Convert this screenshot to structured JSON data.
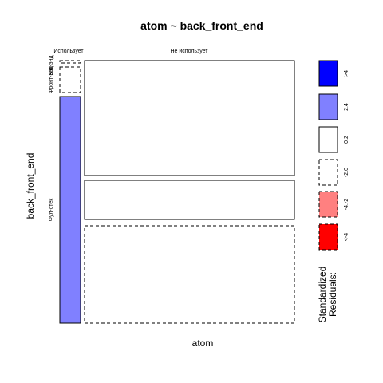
{
  "chart_data": {
    "type": "mosaic",
    "title": "atom ~ back_front_end",
    "xlabel": "atom",
    "ylabel": "back_front_end",
    "x_categories": [
      "Использует",
      "Не использует"
    ],
    "y_categories": [
      "Бэк-энд",
      "Фронт-энд",
      "Фул-стек"
    ],
    "cells": [
      {
        "x": "Использует",
        "y": "Бэк-энд",
        "fill": "white",
        "border": "dashed"
      },
      {
        "x": "Использует",
        "y": "Фронт-энд",
        "fill": "white",
        "border": "dashed"
      },
      {
        "x": "Использует",
        "y": "Фул-стек",
        "fill": "#8080ff",
        "border": "solid"
      },
      {
        "x": "Не использует",
        "y": "Бэк-энд",
        "fill": "white",
        "border": "solid"
      },
      {
        "x": "Не использует",
        "y": "Фронт-энд",
        "fill": "white",
        "border": "solid"
      },
      {
        "x": "Не использует",
        "y": "Фул-стек",
        "fill": "white",
        "border": "dashed"
      }
    ],
    "legend": {
      "title_lines": [
        "Standardized",
        "Residuals:"
      ],
      "entries": [
        {
          "label": ">4",
          "fill": "#0000ff",
          "border": "solid"
        },
        {
          "label": "2:4",
          "fill": "#8080ff",
          "border": "solid"
        },
        {
          "label": "0:2",
          "fill": "#ffffff",
          "border": "solid"
        },
        {
          "label": "-2:0",
          "fill": "#ffffff",
          "border": "dashed"
        },
        {
          "label": "-4:-2",
          "fill": "#ff8080",
          "border": "dashed"
        },
        {
          "label": "<-4",
          "fill": "#ff0000",
          "border": "dashed"
        }
      ]
    }
  }
}
